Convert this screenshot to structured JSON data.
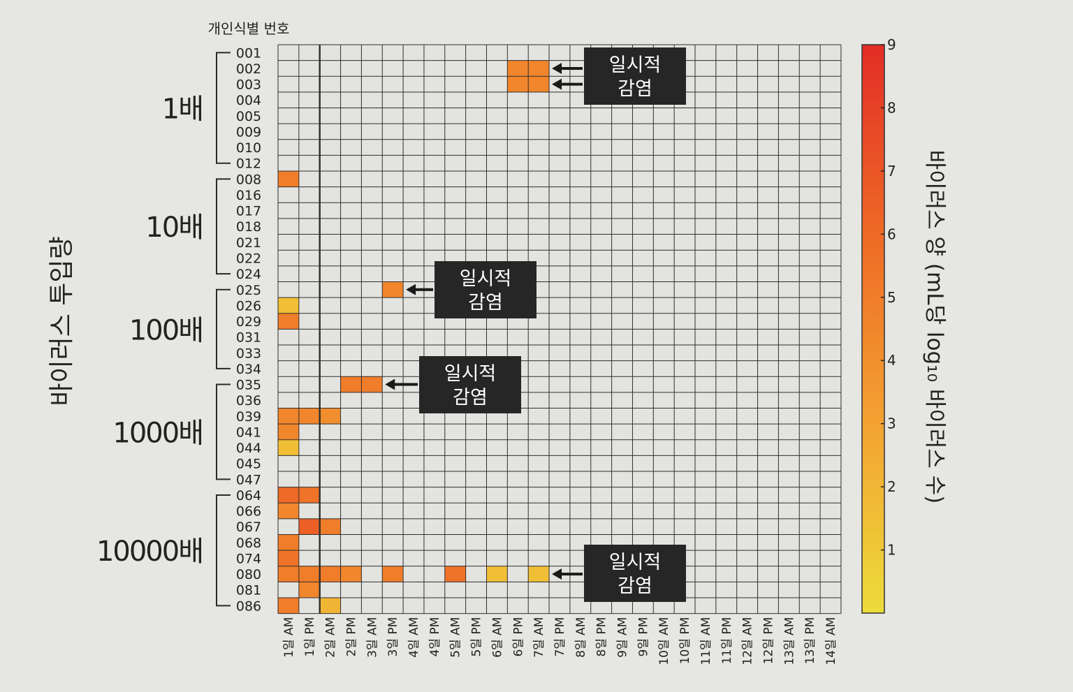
{
  "chart_data": {
    "type": "heatmap",
    "y_axis_title": "개인식별 번호",
    "group_axis_label": "바이러스 투입량",
    "colorbar_label": "바이러스 양 (mL당 log₁₀ 바이러스 수)",
    "colorbar_range": [
      0,
      9
    ],
    "colorbar_ticks": [
      "1",
      "2",
      "3",
      "4",
      "5",
      "6",
      "7",
      "8",
      "9"
    ],
    "colorscale": [
      "#ecdc3a",
      "#f3a232",
      "#ee6a26",
      "#e22d26"
    ],
    "empty_color": "#e3e3e0",
    "grid_color": "#2e2e2e",
    "columns": [
      "1일 AM",
      "1일 PM",
      "2일 AM",
      "2일 PM",
      "3일 AM",
      "3일 PM",
      "4일 AM",
      "4일 PM",
      "5일 AM",
      "5일 PM",
      "6일 AM",
      "6일 PM",
      "7일 AM",
      "7일 PM",
      "8일 AM",
      "8일 PM",
      "9일 AM",
      "9일 PM",
      "10일 AM",
      "10일 PM",
      "11일 AM",
      "11일 PM",
      "12일 AM",
      "12일 PM",
      "13일 AM",
      "13일 PM",
      "14일 AM"
    ],
    "groups": [
      {
        "label": "1배",
        "rows": [
          "001",
          "002",
          "003",
          "004",
          "005",
          "009",
          "010",
          "012"
        ]
      },
      {
        "label": "10배",
        "rows": [
          "008",
          "016",
          "017",
          "018",
          "021",
          "022",
          "024"
        ]
      },
      {
        "label": "100배",
        "rows": [
          "025",
          "026",
          "029",
          "031",
          "033",
          "034"
        ]
      },
      {
        "label": "1000배",
        "rows": [
          "035",
          "036",
          "039",
          "041",
          "044",
          "045",
          "047"
        ]
      },
      {
        "label": "10000배",
        "rows": [
          "064",
          "066",
          "067",
          "068",
          "074",
          "080",
          "081",
          "086"
        ]
      }
    ],
    "values": [
      {
        "row": "002",
        "col": "6일 PM",
        "value": 4.5
      },
      {
        "row": "002",
        "col": "7일 AM",
        "value": 4.5
      },
      {
        "row": "003",
        "col": "6일 PM",
        "value": 4.5
      },
      {
        "row": "003",
        "col": "7일 AM",
        "value": 4.5
      },
      {
        "row": "008",
        "col": "1일 AM",
        "value": 5
      },
      {
        "row": "025",
        "col": "3일 PM",
        "value": 4.5
      },
      {
        "row": "026",
        "col": "1일 AM",
        "value": 1.5
      },
      {
        "row": "029",
        "col": "1일 AM",
        "value": 5
      },
      {
        "row": "035",
        "col": "2일 PM",
        "value": 5
      },
      {
        "row": "035",
        "col": "3일 AM",
        "value": 5
      },
      {
        "row": "039",
        "col": "1일 AM",
        "value": 4.5
      },
      {
        "row": "039",
        "col": "1일 PM",
        "value": 4.5
      },
      {
        "row": "039",
        "col": "2일 AM",
        "value": 4
      },
      {
        "row": "041",
        "col": "1일 AM",
        "value": 4.5
      },
      {
        "row": "044",
        "col": "1일 AM",
        "value": 1.5
      },
      {
        "row": "064",
        "col": "1일 AM",
        "value": 6
      },
      {
        "row": "064",
        "col": "1일 PM",
        "value": 5.5
      },
      {
        "row": "066",
        "col": "1일 AM",
        "value": 4.5
      },
      {
        "row": "067",
        "col": "1일 PM",
        "value": 6.5
      },
      {
        "row": "067",
        "col": "2일 AM",
        "value": 5
      },
      {
        "row": "068",
        "col": "1일 AM",
        "value": 5
      },
      {
        "row": "074",
        "col": "1일 AM",
        "value": 5.5
      },
      {
        "row": "080",
        "col": "1일 AM",
        "value": 5
      },
      {
        "row": "080",
        "col": "1일 PM",
        "value": 5
      },
      {
        "row": "080",
        "col": "2일 AM",
        "value": 5
      },
      {
        "row": "080",
        "col": "2일 PM",
        "value": 4.5
      },
      {
        "row": "080",
        "col": "3일 PM",
        "value": 5
      },
      {
        "row": "080",
        "col": "5일 AM",
        "value": 5.5
      },
      {
        "row": "080",
        "col": "6일 AM",
        "value": 1.5
      },
      {
        "row": "080",
        "col": "7일 AM",
        "value": 1.5
      },
      {
        "row": "081",
        "col": "1일 PM",
        "value": 4.5
      },
      {
        "row": "086",
        "col": "1일 AM",
        "value": 5
      },
      {
        "row": "086",
        "col": "2일 AM",
        "value": 2
      }
    ],
    "annotations": [
      {
        "lines": [
          "일시적",
          "감염"
        ],
        "rows": [
          "002",
          "003"
        ],
        "col": "7일 AM"
      },
      {
        "lines": [
          "일시적",
          "감염"
        ],
        "rows": [
          "025"
        ],
        "col": "3일 PM"
      },
      {
        "lines": [
          "일시적",
          "감염"
        ],
        "rows": [
          "035"
        ],
        "col": "3일 AM"
      },
      {
        "lines": [
          "일시적",
          "감염"
        ],
        "rows": [
          "080"
        ],
        "col": "7일 AM"
      }
    ]
  }
}
